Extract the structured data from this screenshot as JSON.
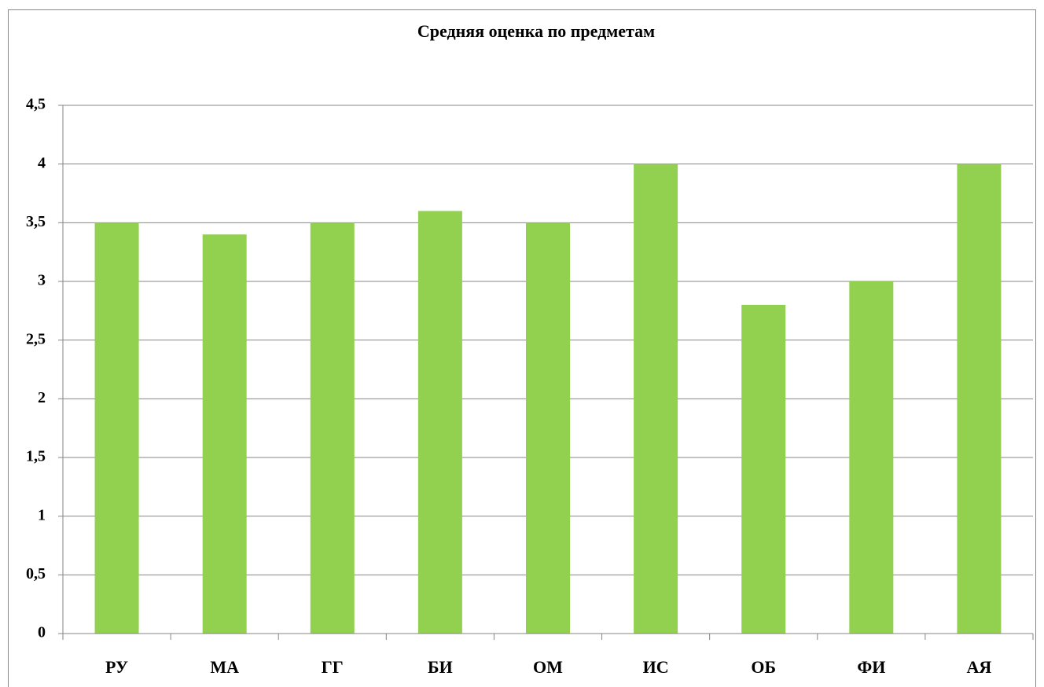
{
  "chart_data": {
    "type": "bar",
    "title": "Средняя оценка по предметам",
    "categories": [
      "РУ",
      "МА",
      "ГГ",
      "БИ",
      "ОМ",
      "ИС",
      "ОБ",
      "ФИ",
      "АЯ"
    ],
    "values": [
      3.5,
      3.4,
      3.5,
      3.6,
      3.5,
      4,
      2.8,
      3,
      4
    ],
    "color": "#92d050",
    "ylim": [
      0,
      4.5
    ],
    "yticks": [
      0,
      {
        "value": 0.5,
        "label": "0,5"
      },
      1,
      {
        "value": 1.5,
        "label": "1,5"
      },
      2,
      {
        "value": 2.5,
        "label": "2,5"
      },
      3,
      {
        "value": 3.5,
        "label": "3,5"
      },
      4,
      {
        "value": 4.5,
        "label": "4,5"
      }
    ],
    "grid": true
  }
}
